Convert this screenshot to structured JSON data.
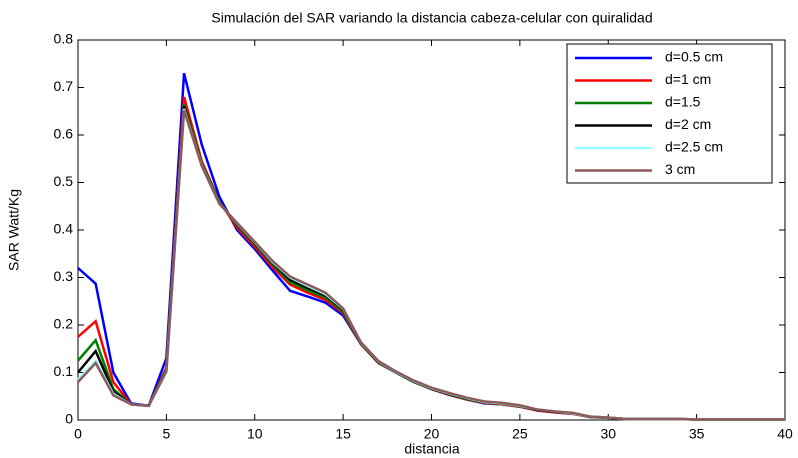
{
  "chart_data": {
    "type": "line",
    "title": "Simulación del SAR variando la distancia cabeza-celular con quiralidad",
    "xlabel": "distancia",
    "ylabel": "SAR Watt/Kg",
    "x": [
      0,
      1,
      2,
      3,
      4,
      5,
      6,
      7,
      8,
      9,
      10,
      11,
      12,
      13,
      14,
      15,
      16,
      17,
      18,
      19,
      20,
      21,
      22,
      23,
      24,
      25,
      26,
      27,
      28,
      29,
      30,
      31,
      32,
      33,
      34,
      35,
      36,
      37,
      38,
      39,
      40
    ],
    "series": [
      {
        "name": "d=0.5 cm",
        "color": "#0000ff",
        "values": [
          0.32,
          0.287,
          0.1,
          0.035,
          0.03,
          0.13,
          0.73,
          0.58,
          0.47,
          0.4,
          0.36,
          0.315,
          0.272,
          0.26,
          0.247,
          0.22,
          0.16,
          0.12,
          0.1,
          0.08,
          0.065,
          0.053,
          0.043,
          0.035,
          0.033,
          0.028,
          0.02,
          0.016,
          0.013,
          0.006,
          0.005,
          0.002,
          0.002,
          0.002,
          0.002,
          0.001,
          0.001,
          0.001,
          0.001,
          0.001,
          0.001
        ]
      },
      {
        "name": "d=1 cm",
        "color": "#ff0000",
        "values": [
          0.175,
          0.208,
          0.08,
          0.033,
          0.03,
          0.11,
          0.68,
          0.545,
          0.46,
          0.405,
          0.365,
          0.322,
          0.285,
          0.268,
          0.253,
          0.225,
          0.16,
          0.12,
          0.1,
          0.08,
          0.065,
          0.053,
          0.043,
          0.036,
          0.033,
          0.028,
          0.02,
          0.016,
          0.013,
          0.006,
          0.005,
          0.002,
          0.002,
          0.002,
          0.002,
          0.001,
          0.001,
          0.001,
          0.001,
          0.001,
          0.001
        ]
      },
      {
        "name": "d=1.5",
        "color": "#008000",
        "values": [
          0.125,
          0.168,
          0.065,
          0.033,
          0.03,
          0.107,
          0.665,
          0.54,
          0.46,
          0.41,
          0.37,
          0.328,
          0.29,
          0.273,
          0.258,
          0.228,
          0.161,
          0.121,
          0.1,
          0.08,
          0.066,
          0.054,
          0.044,
          0.037,
          0.034,
          0.029,
          0.021,
          0.017,
          0.014,
          0.006,
          0.005,
          0.002,
          0.002,
          0.002,
          0.002,
          0.001,
          0.001,
          0.001,
          0.001,
          0.001,
          0.001
        ]
      },
      {
        "name": "d=2 cm",
        "color": "#000000",
        "values": [
          0.1,
          0.145,
          0.06,
          0.033,
          0.03,
          0.105,
          0.66,
          0.537,
          0.458,
          0.412,
          0.372,
          0.331,
          0.295,
          0.278,
          0.262,
          0.232,
          0.162,
          0.122,
          0.1,
          0.081,
          0.066,
          0.055,
          0.045,
          0.038,
          0.035,
          0.03,
          0.021,
          0.017,
          0.014,
          0.007,
          0.005,
          0.002,
          0.002,
          0.002,
          0.002,
          0.001,
          0.001,
          0.001,
          0.001,
          0.001,
          0.001
        ]
      },
      {
        "name": "d=2.5 cm",
        "color": "#99ffff",
        "values": [
          0.085,
          0.125,
          0.055,
          0.033,
          0.03,
          0.103,
          0.655,
          0.536,
          0.456,
          0.414,
          0.374,
          0.333,
          0.3,
          0.282,
          0.265,
          0.234,
          0.163,
          0.123,
          0.101,
          0.082,
          0.067,
          0.056,
          0.046,
          0.038,
          0.035,
          0.03,
          0.022,
          0.018,
          0.014,
          0.007,
          0.005,
          0.002,
          0.002,
          0.002,
          0.002,
          0.001,
          0.001,
          0.001,
          0.001,
          0.001,
          0.001
        ]
      },
      {
        "name": "3 cm",
        "color": "#8c5a5a",
        "values": [
          0.08,
          0.12,
          0.052,
          0.033,
          0.03,
          0.102,
          0.652,
          0.535,
          0.455,
          0.415,
          0.375,
          0.335,
          0.302,
          0.285,
          0.268,
          0.235,
          0.164,
          0.124,
          0.102,
          0.083,
          0.068,
          0.057,
          0.047,
          0.039,
          0.036,
          0.031,
          0.022,
          0.018,
          0.015,
          0.007,
          0.005,
          0.002,
          0.002,
          0.002,
          0.002,
          0.001,
          0.001,
          0.001,
          0.001,
          0.001,
          0.001
        ]
      }
    ],
    "xlim": [
      0,
      40
    ],
    "xticks": [
      0,
      5,
      10,
      15,
      20,
      25,
      30,
      35,
      40
    ],
    "ylim": [
      0,
      0.8
    ],
    "yticks": [
      0,
      0.1,
      0.2,
      0.3,
      0.4,
      0.5,
      0.6,
      0.7,
      0.8
    ],
    "grid": false,
    "legend": "northeast"
  }
}
